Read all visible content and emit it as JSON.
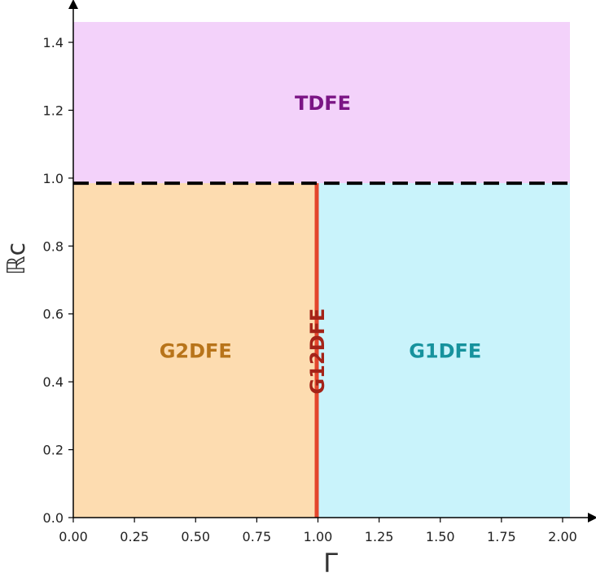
{
  "chart_data": {
    "type": "area",
    "title": "",
    "xlabel": "Γ",
    "ylabel": "ℝc",
    "xlim": [
      0,
      2.03
    ],
    "ylim": [
      0,
      1.46
    ],
    "grid": false,
    "x_ticks": [
      "0.00",
      "0.25",
      "0.50",
      "0.75",
      "1.00",
      "1.25",
      "1.50",
      "1.75",
      "2.00"
    ],
    "y_ticks": [
      "0.0",
      "0.2",
      "0.4",
      "0.6",
      "0.8",
      "1.0",
      "1.2",
      "1.4"
    ],
    "regions": [
      {
        "label": "TDFE",
        "x": [
          0,
          2.03
        ],
        "y": [
          0.985,
          1.46
        ],
        "fill": "#f3d2fa",
        "label_color": "#7b1585",
        "label_at": [
          1.02,
          1.22
        ]
      },
      {
        "label": "G2DFE",
        "x": [
          0,
          0.995
        ],
        "y": [
          0,
          0.985
        ],
        "fill": "#fddcb0",
        "label_color": "#b8741a",
        "label_at": [
          0.5,
          0.49
        ]
      },
      {
        "label": "G1DFE",
        "x": [
          0.995,
          2.03
        ],
        "y": [
          0,
          0.985
        ],
        "fill": "#c9f3fb",
        "label_color": "#16929d",
        "label_at": [
          1.52,
          0.49
        ]
      }
    ],
    "lines": [
      {
        "label": "G12DFE",
        "x": [
          0.995,
          0.995
        ],
        "y": [
          0,
          0.985
        ],
        "style": "solid",
        "color": "#e3452c",
        "label_color": "#a42318",
        "label_at": [
          0.995,
          0.49
        ]
      },
      {
        "label": "",
        "x": [
          0,
          2.03
        ],
        "y": [
          0.985,
          0.985
        ],
        "style": "dashed",
        "color": "#000000"
      }
    ]
  }
}
